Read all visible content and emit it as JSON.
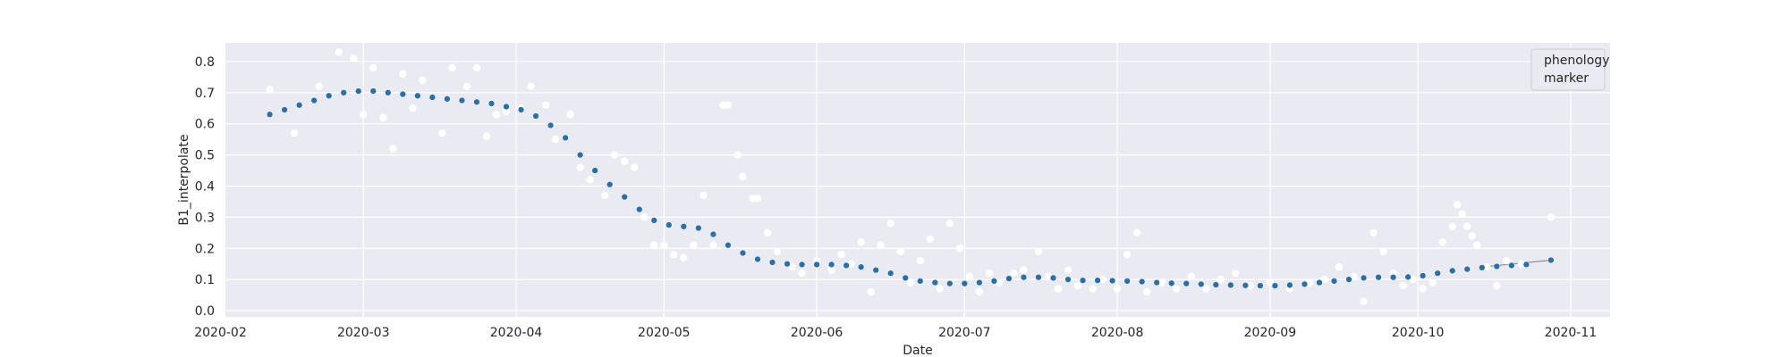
{
  "chart_data": {
    "type": "scatter",
    "xlabel": "Date",
    "ylabel": "B1_interpolate",
    "x_range": [
      "2020-02-02",
      "2020-11-09"
    ],
    "ylim": [
      -0.02,
      0.86
    ],
    "x_ticks": [
      "2020-02",
      "2020-03",
      "2020-04",
      "2020-05",
      "2020-06",
      "2020-07",
      "2020-08",
      "2020-09",
      "2020-10",
      "2020-11"
    ],
    "y_ticks": [
      0.0,
      0.1,
      0.2,
      0.3,
      0.4,
      0.5,
      0.6,
      0.7,
      0.8
    ],
    "grid": true,
    "legend": {
      "placement": "upper-right",
      "text": "phenology\nmarker"
    },
    "colors": {
      "interpolated": "#2b6fa5",
      "raw": "#ffffff",
      "background": "#eaeaf2",
      "line": "#8c8c8c"
    },
    "series": [
      {
        "style": "markers",
        "points": [
          [
            "2020-02-11",
            0.63
          ],
          [
            "2020-02-14",
            0.645
          ],
          [
            "2020-02-17",
            0.66
          ],
          [
            "2020-02-20",
            0.675
          ],
          [
            "2020-02-23",
            0.69
          ],
          [
            "2020-02-26",
            0.7
          ],
          [
            "2020-02-29",
            0.705
          ],
          [
            "2020-03-03",
            0.705
          ],
          [
            "2020-03-06",
            0.7
          ],
          [
            "2020-03-09",
            0.695
          ],
          [
            "2020-03-12",
            0.69
          ],
          [
            "2020-03-15",
            0.685
          ],
          [
            "2020-03-18",
            0.68
          ],
          [
            "2020-03-21",
            0.675
          ],
          [
            "2020-03-24",
            0.67
          ],
          [
            "2020-03-27",
            0.665
          ],
          [
            "2020-03-30",
            0.655
          ],
          [
            "2020-04-02",
            0.645
          ],
          [
            "2020-04-05",
            0.625
          ],
          [
            "2020-04-08",
            0.595
          ],
          [
            "2020-04-11",
            0.555
          ],
          [
            "2020-04-14",
            0.5
          ],
          [
            "2020-04-17",
            0.45
          ],
          [
            "2020-04-20",
            0.405
          ],
          [
            "2020-04-23",
            0.365
          ],
          [
            "2020-04-26",
            0.325
          ],
          [
            "2020-04-29",
            0.29
          ],
          [
            "2020-05-02",
            0.275
          ],
          [
            "2020-05-05",
            0.27
          ],
          [
            "2020-05-08",
            0.265
          ],
          [
            "2020-05-11",
            0.245
          ],
          [
            "2020-05-14",
            0.21
          ],
          [
            "2020-05-17",
            0.185
          ],
          [
            "2020-05-20",
            0.165
          ],
          [
            "2020-05-23",
            0.155
          ],
          [
            "2020-05-26",
            0.15
          ],
          [
            "2020-05-29",
            0.148
          ],
          [
            "2020-06-01",
            0.148
          ],
          [
            "2020-06-04",
            0.148
          ],
          [
            "2020-06-07",
            0.145
          ],
          [
            "2020-06-10",
            0.14
          ],
          [
            "2020-06-13",
            0.13
          ],
          [
            "2020-06-16",
            0.12
          ],
          [
            "2020-06-19",
            0.105
          ],
          [
            "2020-06-22",
            0.095
          ],
          [
            "2020-06-25",
            0.09
          ],
          [
            "2020-06-28",
            0.087
          ],
          [
            "2020-07-01",
            0.087
          ],
          [
            "2020-07-04",
            0.09
          ],
          [
            "2020-07-07",
            0.095
          ],
          [
            "2020-07-10",
            0.103
          ],
          [
            "2020-07-13",
            0.107
          ],
          [
            "2020-07-16",
            0.107
          ],
          [
            "2020-07-19",
            0.105
          ],
          [
            "2020-07-22",
            0.1
          ],
          [
            "2020-07-25",
            0.097
          ],
          [
            "2020-07-28",
            0.097
          ],
          [
            "2020-07-31",
            0.096
          ],
          [
            "2020-08-03",
            0.095
          ],
          [
            "2020-08-06",
            0.093
          ],
          [
            "2020-08-09",
            0.09
          ],
          [
            "2020-08-12",
            0.088
          ],
          [
            "2020-08-15",
            0.087
          ],
          [
            "2020-08-18",
            0.085
          ],
          [
            "2020-08-21",
            0.083
          ],
          [
            "2020-08-24",
            0.082
          ],
          [
            "2020-08-27",
            0.081
          ],
          [
            "2020-08-30",
            0.08
          ],
          [
            "2020-09-02",
            0.08
          ],
          [
            "2020-09-05",
            0.082
          ],
          [
            "2020-09-08",
            0.085
          ],
          [
            "2020-09-11",
            0.09
          ],
          [
            "2020-09-14",
            0.095
          ],
          [
            "2020-09-17",
            0.1
          ],
          [
            "2020-09-20",
            0.105
          ],
          [
            "2020-09-23",
            0.107
          ],
          [
            "2020-09-26",
            0.107
          ],
          [
            "2020-09-29",
            0.108
          ],
          [
            "2020-10-02",
            0.112
          ],
          [
            "2020-10-05",
            0.12
          ],
          [
            "2020-10-08",
            0.128
          ],
          [
            "2020-10-11",
            0.133
          ],
          [
            "2020-10-14",
            0.138
          ],
          [
            "2020-10-17",
            0.142
          ],
          [
            "2020-10-20",
            0.145
          ],
          [
            "2020-10-23",
            0.148
          ],
          [
            "2020-10-28",
            0.162
          ]
        ]
      },
      {
        "style": "line",
        "points": [
          [
            "2020-10-14",
            0.14
          ],
          [
            "2020-10-28",
            0.162
          ]
        ]
      },
      {
        "style": "white-markers",
        "points": [
          [
            "2020-02-11",
            0.71
          ],
          [
            "2020-02-16",
            0.57
          ],
          [
            "2020-02-21",
            0.72
          ],
          [
            "2020-02-25",
            0.83
          ],
          [
            "2020-02-28",
            0.81
          ],
          [
            "2020-03-01",
            0.63
          ],
          [
            "2020-03-03",
            0.78
          ],
          [
            "2020-03-05",
            0.62
          ],
          [
            "2020-03-07",
            0.52
          ],
          [
            "2020-03-09",
            0.76
          ],
          [
            "2020-03-11",
            0.65
          ],
          [
            "2020-03-13",
            0.74
          ],
          [
            "2020-03-17",
            0.57
          ],
          [
            "2020-03-19",
            0.78
          ],
          [
            "2020-03-22",
            0.72
          ],
          [
            "2020-03-24",
            0.78
          ],
          [
            "2020-03-26",
            0.56
          ],
          [
            "2020-03-28",
            0.63
          ],
          [
            "2020-03-30",
            0.64
          ],
          [
            "2020-04-02",
            0.65
          ],
          [
            "2020-04-04",
            0.72
          ],
          [
            "2020-04-07",
            0.66
          ],
          [
            "2020-04-09",
            0.55
          ],
          [
            "2020-04-12",
            0.63
          ],
          [
            "2020-04-14",
            0.46
          ],
          [
            "2020-04-16",
            0.42
          ],
          [
            "2020-04-19",
            0.37
          ],
          [
            "2020-04-21",
            0.5
          ],
          [
            "2020-04-23",
            0.48
          ],
          [
            "2020-04-25",
            0.46
          ],
          [
            "2020-04-27",
            0.3
          ],
          [
            "2020-04-29",
            0.21
          ],
          [
            "2020-05-01",
            0.21
          ],
          [
            "2020-05-03",
            0.18
          ],
          [
            "2020-05-05",
            0.17
          ],
          [
            "2020-05-07",
            0.21
          ],
          [
            "2020-05-09",
            0.37
          ],
          [
            "2020-05-11",
            0.21
          ],
          [
            "2020-05-13",
            0.66
          ],
          [
            "2020-05-14",
            0.66
          ],
          [
            "2020-05-16",
            0.5
          ],
          [
            "2020-05-17",
            0.43
          ],
          [
            "2020-05-19",
            0.36
          ],
          [
            "2020-05-20",
            0.36
          ],
          [
            "2020-05-22",
            0.25
          ],
          [
            "2020-05-24",
            0.19
          ],
          [
            "2020-05-27",
            0.14
          ],
          [
            "2020-05-29",
            0.12
          ],
          [
            "2020-06-01",
            0.16
          ],
          [
            "2020-06-04",
            0.13
          ],
          [
            "2020-06-06",
            0.18
          ],
          [
            "2020-06-08",
            0.15
          ],
          [
            "2020-06-10",
            0.22
          ],
          [
            "2020-06-12",
            0.06
          ],
          [
            "2020-06-14",
            0.21
          ],
          [
            "2020-06-16",
            0.28
          ],
          [
            "2020-06-18",
            0.19
          ],
          [
            "2020-06-20",
            0.09
          ],
          [
            "2020-06-22",
            0.16
          ],
          [
            "2020-06-24",
            0.23
          ],
          [
            "2020-06-26",
            0.07
          ],
          [
            "2020-06-28",
            0.28
          ],
          [
            "2020-06-30",
            0.2
          ],
          [
            "2020-07-02",
            0.11
          ],
          [
            "2020-07-04",
            0.06
          ],
          [
            "2020-07-06",
            0.12
          ],
          [
            "2020-07-08",
            0.09
          ],
          [
            "2020-07-11",
            0.12
          ],
          [
            "2020-07-13",
            0.13
          ],
          [
            "2020-07-16",
            0.19
          ],
          [
            "2020-07-18",
            0.11
          ],
          [
            "2020-07-20",
            0.07
          ],
          [
            "2020-07-22",
            0.13
          ],
          [
            "2020-07-24",
            0.08
          ],
          [
            "2020-07-27",
            0.07
          ],
          [
            "2020-07-29",
            0.1
          ],
          [
            "2020-08-01",
            0.07
          ],
          [
            "2020-08-03",
            0.18
          ],
          [
            "2020-08-05",
            0.25
          ],
          [
            "2020-08-07",
            0.06
          ],
          [
            "2020-08-10",
            0.09
          ],
          [
            "2020-08-13",
            0.07
          ],
          [
            "2020-08-16",
            0.11
          ],
          [
            "2020-08-19",
            0.07
          ],
          [
            "2020-08-22",
            0.1
          ],
          [
            "2020-08-25",
            0.12
          ],
          [
            "2020-08-28",
            0.08
          ],
          [
            "2020-09-01",
            0.09
          ],
          [
            "2020-09-05",
            0.07
          ],
          [
            "2020-09-09",
            0.09
          ],
          [
            "2020-09-12",
            0.1
          ],
          [
            "2020-09-15",
            0.14
          ],
          [
            "2020-09-18",
            0.11
          ],
          [
            "2020-09-20",
            0.03
          ],
          [
            "2020-09-22",
            0.25
          ],
          [
            "2020-09-24",
            0.19
          ],
          [
            "2020-09-26",
            0.12
          ],
          [
            "2020-09-28",
            0.08
          ],
          [
            "2020-09-30",
            0.1
          ],
          [
            "2020-10-02",
            0.07
          ],
          [
            "2020-10-04",
            0.09
          ],
          [
            "2020-10-06",
            0.22
          ],
          [
            "2020-10-08",
            0.27
          ],
          [
            "2020-10-09",
            0.34
          ],
          [
            "2020-10-10",
            0.31
          ],
          [
            "2020-10-11",
            0.27
          ],
          [
            "2020-10-12",
            0.24
          ],
          [
            "2020-10-13",
            0.21
          ],
          [
            "2020-10-15",
            0.14
          ],
          [
            "2020-10-17",
            0.08
          ],
          [
            "2020-10-19",
            0.16
          ],
          [
            "2020-10-22",
            0.15
          ],
          [
            "2020-10-28",
            0.3
          ]
        ]
      }
    ]
  }
}
